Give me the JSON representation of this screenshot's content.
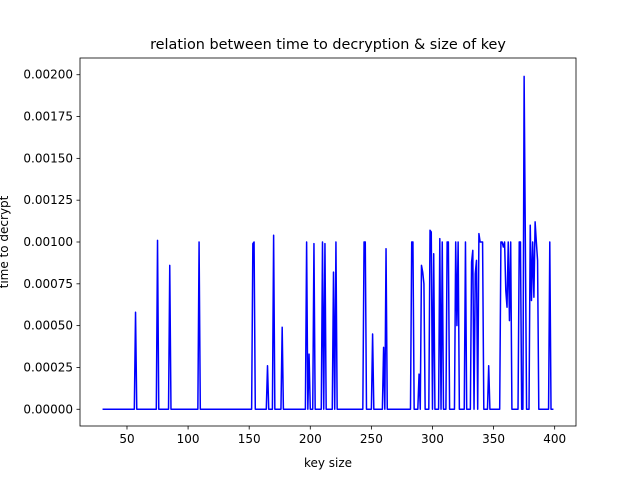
{
  "chart_data": {
    "type": "line",
    "title": "relation between time to decryption & size of key",
    "xlabel": "key size",
    "ylabel": "time to decrypt",
    "x": [
      30,
      56,
      57,
      58,
      74,
      75,
      76,
      84,
      85,
      86,
      108,
      109,
      110,
      152,
      153,
      154,
      155,
      164,
      165,
      166,
      169,
      170,
      171,
      176,
      177,
      178,
      196,
      197,
      198,
      199,
      200,
      202,
      203,
      204,
      209,
      210,
      211,
      212,
      213,
      218,
      219,
      220,
      221,
      222,
      243,
      244,
      245,
      246,
      250,
      251,
      252,
      259,
      260,
      261,
      262,
      263,
      282,
      283,
      284,
      285,
      288,
      289,
      290,
      291,
      292,
      293,
      294,
      297,
      298,
      299,
      300,
      301,
      302,
      305,
      306,
      307,
      308,
      309,
      311,
      312,
      313,
      314,
      318,
      319,
      320,
      321,
      322,
      326,
      327,
      328,
      331,
      332,
      333,
      334,
      335,
      336,
      337,
      338,
      339,
      340,
      341,
      342,
      345,
      346,
      347,
      355,
      356,
      357,
      358,
      359,
      360,
      361,
      362,
      363,
      364,
      365,
      370,
      371,
      372,
      373,
      374,
      375,
      376,
      377,
      379,
      380,
      381,
      382,
      383,
      384,
      385,
      386,
      387,
      395,
      396,
      397,
      399
    ],
    "series": [
      {
        "name": "time",
        "color": "#0000ff",
        "values": [
          0,
          0,
          0.00058,
          0,
          0,
          0.00101,
          0,
          0,
          0.00086,
          0,
          0,
          0.001,
          0,
          0,
          0.00099,
          0.001,
          0,
          0,
          0.00026,
          0,
          0,
          0.00104,
          0,
          0,
          0.00049,
          0,
          0,
          0.001,
          0,
          0.00033,
          0,
          0,
          0.00099,
          0,
          0,
          0.001,
          0,
          0.00099,
          0,
          0,
          0.00082,
          0,
          0.001,
          0,
          0,
          0.001,
          0.001,
          0,
          0,
          0.00045,
          0,
          0,
          0.00037,
          0,
          0.00096,
          0,
          0,
          0.001,
          0.001,
          0,
          0,
          0.00021,
          0,
          0.00086,
          0.00082,
          0.00075,
          0,
          0,
          0.00107,
          0.00106,
          0,
          0.00093,
          0,
          0,
          0.00102,
          0,
          0.001,
          0,
          0,
          0.001,
          0.001,
          0,
          0,
          0.001,
          0.0005,
          0.001,
          0,
          0,
          0.001,
          0,
          0,
          0.00088,
          0.00095,
          0,
          0.00081,
          0.00089,
          0,
          0.00105,
          0.001,
          0.001,
          0.001,
          0,
          0,
          0.00026,
          0,
          0,
          0.001,
          0.001,
          0.00097,
          0.001,
          0.00071,
          0.00061,
          0.001,
          0.00053,
          0.001,
          0,
          0,
          0.001,
          0.001,
          0,
          0,
          0.00199,
          0.001,
          0,
          0,
          0.0011,
          0.00065,
          0.001,
          0.00067,
          0.00112,
          0.001,
          0.00089,
          0,
          0,
          0.001,
          0,
          0
        ]
      }
    ],
    "xlim": [
      11.55,
      417.45
    ],
    "xticks": [
      50,
      100,
      150,
      200,
      250,
      300,
      350,
      400
    ],
    "ylim": [
      -0.0001,
      0.0021
    ],
    "yticks": [
      {
        "value": 0,
        "label": "0.00000"
      },
      {
        "value": 0.00025,
        "label": "0.00025"
      },
      {
        "value": 0.0005,
        "label": "0.00050"
      },
      {
        "value": 0.00075,
        "label": "0.00075"
      },
      {
        "value": 0.001,
        "label": "0.00100"
      },
      {
        "value": 0.00125,
        "label": "0.00125"
      },
      {
        "value": 0.0015,
        "label": "0.00150"
      },
      {
        "value": 0.00175,
        "label": "0.00175"
      },
      {
        "value": 0.002,
        "label": "0.00200"
      }
    ]
  }
}
